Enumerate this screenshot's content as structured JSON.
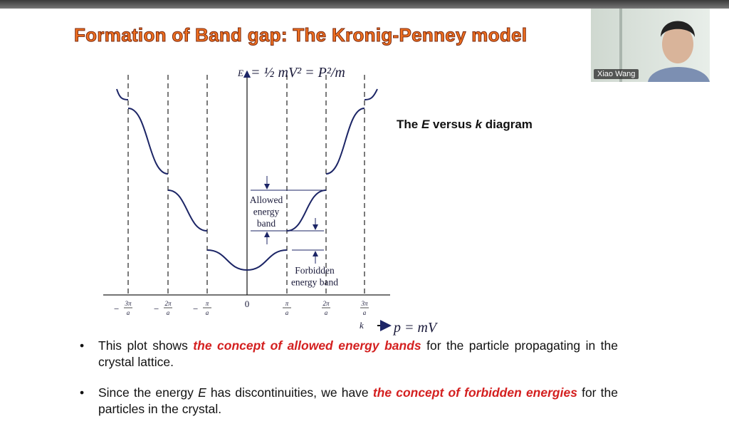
{
  "slide": {
    "title": "Formation of Band gap: The Kronig-Penney model",
    "side_caption": [
      {
        "text": "The ",
        "italic": false
      },
      {
        "text": "E",
        "italic": true
      },
      {
        "text": " versus ",
        "italic": false
      },
      {
        "text": "k",
        "italic": true
      },
      {
        "text": " diagram",
        "italic": false
      }
    ],
    "figure": {
      "e_axis_label": "E",
      "k_axis_label": "k",
      "k_ticks": [
        {
          "sign": "−",
          "num": "3π",
          "den": "a"
        },
        {
          "sign": "−",
          "num": "2π",
          "den": "a"
        },
        {
          "sign": "−",
          "num": "π",
          "den": "a"
        },
        {
          "sign": "",
          "num": "0",
          "den": ""
        },
        {
          "sign": "",
          "num": "π",
          "den": "a"
        },
        {
          "sign": "",
          "num": "2π",
          "den": "a"
        },
        {
          "sign": "",
          "num": "3π",
          "den": "a"
        }
      ],
      "allowed_label": [
        "Allowed",
        "energy",
        "band"
      ],
      "forbidden_label": [
        "Forbidden",
        "energy band"
      ]
    },
    "handwriting": [
      "= ½ mV² = P²/m",
      "p = mV"
    ],
    "bullets": [
      [
        {
          "text": "This plot shows ",
          "emphasis": false
        },
        {
          "text": "the concept of allowed energy bands",
          "emphasis": true
        },
        {
          "text": " for the particle propagating in the crystal lattice.",
          "emphasis": false
        }
      ],
      [
        {
          "text": "Since the energy ",
          "emphasis": false
        },
        {
          "text": "E",
          "emphasis": "italic"
        },
        {
          "text": " has discontinuities, we have ",
          "emphasis": false
        },
        {
          "text": "the concept of forbidden energies",
          "emphasis": true
        },
        {
          "text": " for the particles in the crystal.",
          "emphasis": false
        }
      ]
    ]
  },
  "video_tile": {
    "participant": "Xiao Wang"
  }
}
